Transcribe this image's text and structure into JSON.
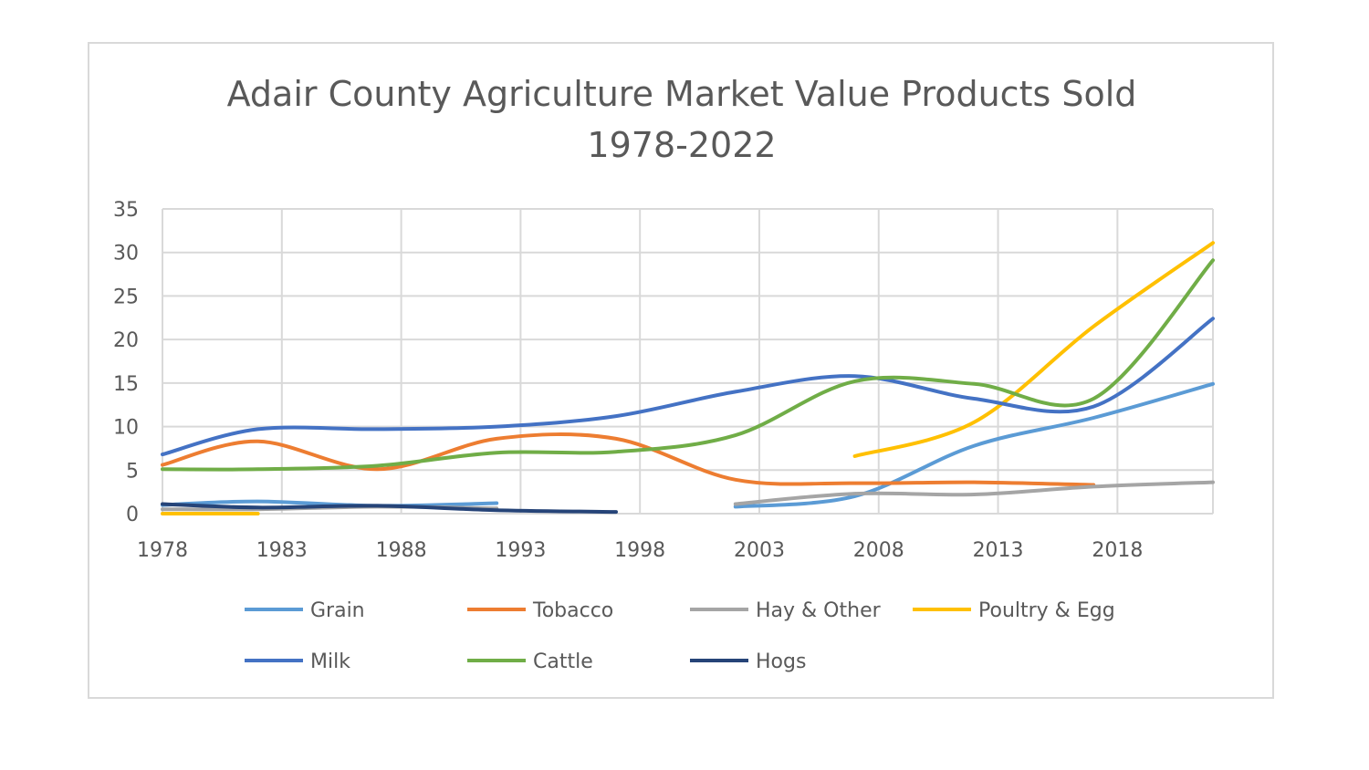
{
  "chart_data": {
    "type": "line",
    "title": "Adair County Agriculture Market Value Products Sold 1978-2022",
    "title_lines": [
      "Adair County Agriculture Market Value Products Sold",
      "1978-2022"
    ],
    "xlabel": "",
    "ylabel": "",
    "x_ticks": [
      1978,
      1983,
      1988,
      1993,
      1998,
      2003,
      2008,
      2013,
      2018
    ],
    "xlim": [
      1978,
      2022
    ],
    "ylim": [
      0,
      35
    ],
    "y_ticks": [
      0,
      5,
      10,
      15,
      20,
      25,
      30,
      35
    ],
    "grid": true,
    "legend_position": "bottom",
    "series": [
      {
        "name": "Grain",
        "color": "#5b9bd5",
        "points": [
          [
            1978,
            1.0
          ],
          [
            1982,
            1.4
          ],
          [
            1987,
            0.9
          ],
          [
            1992,
            1.2
          ],
          [
            2002,
            0.8
          ],
          [
            2007,
            2.0
          ],
          [
            2012,
            7.8
          ],
          [
            2017,
            11.0
          ],
          [
            2022,
            14.9
          ]
        ]
      },
      {
        "name": "Tobacco",
        "color": "#ed7d31",
        "points": [
          [
            1978,
            5.6
          ],
          [
            1982,
            8.3
          ],
          [
            1987,
            5.1
          ],
          [
            1992,
            8.6
          ],
          [
            1997,
            8.6
          ],
          [
            2002,
            3.9
          ],
          [
            2007,
            3.5
          ],
          [
            2012,
            3.6
          ],
          [
            2017,
            3.3
          ]
        ]
      },
      {
        "name": "Hay & Other",
        "color": "#a5a5a5",
        "points": [
          [
            1978,
            0.5
          ],
          [
            1982,
            0.5
          ],
          [
            1987,
            0.8
          ],
          [
            1992,
            0.6
          ],
          [
            2002,
            1.1
          ],
          [
            2007,
            2.3
          ],
          [
            2012,
            2.2
          ],
          [
            2017,
            3.1
          ],
          [
            2022,
            3.6
          ]
        ]
      },
      {
        "name": "Poultry & Egg",
        "color": "#ffc000",
        "points": [
          [
            1978,
            0.0
          ],
          [
            1982,
            0.0
          ],
          [
            2007,
            6.6
          ],
          [
            2012,
            10.5
          ],
          [
            2017,
            21.5
          ],
          [
            2022,
            31.1
          ]
        ]
      },
      {
        "name": "Milk",
        "color": "#4472c4",
        "points": [
          [
            1978,
            6.8
          ],
          [
            1982,
            9.7
          ],
          [
            1987,
            9.7
          ],
          [
            1992,
            10.0
          ],
          [
            1997,
            11.2
          ],
          [
            2002,
            14.0
          ],
          [
            2007,
            15.8
          ],
          [
            2012,
            13.2
          ],
          [
            2017,
            12.3
          ],
          [
            2022,
            22.4
          ]
        ]
      },
      {
        "name": "Cattle",
        "color": "#70ad47",
        "points": [
          [
            1978,
            5.1
          ],
          [
            1982,
            5.1
          ],
          [
            1987,
            5.5
          ],
          [
            1992,
            7.0
          ],
          [
            1997,
            7.1
          ],
          [
            2002,
            9.0
          ],
          [
            2007,
            15.2
          ],
          [
            2012,
            14.9
          ],
          [
            2017,
            13.2
          ],
          [
            2022,
            29.1
          ]
        ]
      },
      {
        "name": "Hogs",
        "color": "#264478",
        "points": [
          [
            1978,
            1.1
          ],
          [
            1982,
            0.7
          ],
          [
            1987,
            0.9
          ],
          [
            1992,
            0.4
          ],
          [
            1997,
            0.2
          ]
        ]
      }
    ]
  }
}
